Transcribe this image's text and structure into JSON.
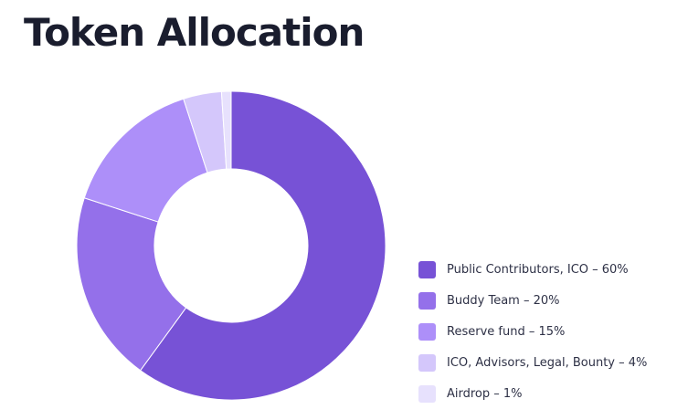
{
  "page": {
    "title": "Token Allocation"
  },
  "chart_data": {
    "type": "pie",
    "donut": true,
    "title": "Token Allocation",
    "legend_position": "right",
    "slices": [
      {
        "label": "Public Contributors, ICO – 60%",
        "value": 60,
        "color": "#7752d6"
      },
      {
        "label": "Buddy Team – 20%",
        "value": 20,
        "color": "#9470ea"
      },
      {
        "label": "Reserve fund – 15%",
        "value": 15,
        "color": "#ad8ff9"
      },
      {
        "label": "ICO, Advisors, Legal, Bounty – 4%",
        "value": 4,
        "color": "#d4c7fb"
      },
      {
        "label": "Airdrop – 1%",
        "value": 1,
        "color": "#e7e1fd"
      }
    ]
  }
}
